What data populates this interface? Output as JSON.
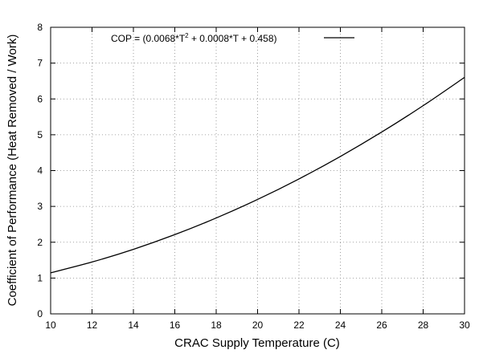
{
  "chart_data": {
    "type": "line",
    "title": "",
    "xlabel": "CRAC Supply Temperature (C)",
    "ylabel": "Coefficient of Performance (Heat Removed / Work)",
    "xlim": [
      10,
      30
    ],
    "ylim": [
      0,
      8
    ],
    "xticks": [
      "10",
      "12",
      "14",
      "16",
      "18",
      "20",
      "22",
      "24",
      "26",
      "28",
      "30"
    ],
    "yticks": [
      "0",
      "1",
      "2",
      "3",
      "4",
      "5",
      "6",
      "7",
      "8"
    ],
    "grid": true,
    "legend_position": "top-left",
    "legend": {
      "prefix": "COP = (0.0068*T",
      "superscript": "2",
      "suffix": " + 0.0008*T + 0.458)"
    },
    "series": [
      {
        "formula": "0.0068*T^2 + 0.0008*T + 0.458",
        "color": "#000000",
        "x": [
          10,
          12,
          14,
          16,
          18,
          20,
          22,
          24,
          26,
          28,
          30
        ],
        "y": [
          1.146,
          1.447,
          1.802,
          2.212,
          2.676,
          3.194,
          3.767,
          4.394,
          5.076,
          5.812,
          6.602
        ]
      }
    ]
  }
}
